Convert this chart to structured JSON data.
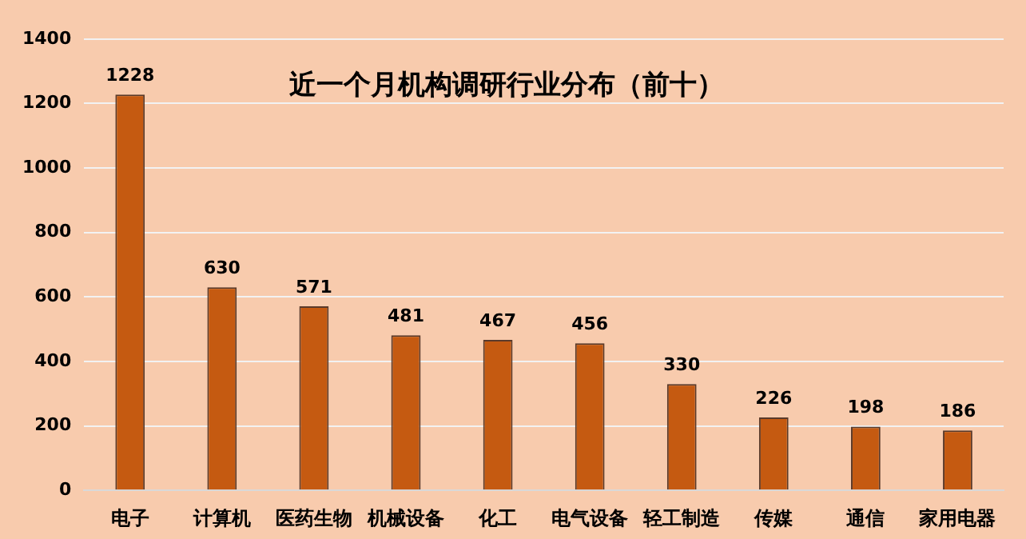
{
  "chart_data": {
    "type": "bar",
    "title": "近一个月机构调研行业分布（前十）",
    "categories": [
      "电子",
      "计算机",
      "医药生物",
      "机械设备",
      "化工",
      "电气设备",
      "轻工制造",
      "传媒",
      "通信",
      "家用电器"
    ],
    "values": [
      1228,
      630,
      571,
      481,
      467,
      456,
      330,
      226,
      198,
      186
    ],
    "color": "#c55a11",
    "ylim": [
      0,
      1400
    ],
    "yticks": [
      0,
      200,
      400,
      600,
      800,
      1000,
      1200,
      1400
    ],
    "grid": "y",
    "legend": false,
    "data_labels": true
  }
}
